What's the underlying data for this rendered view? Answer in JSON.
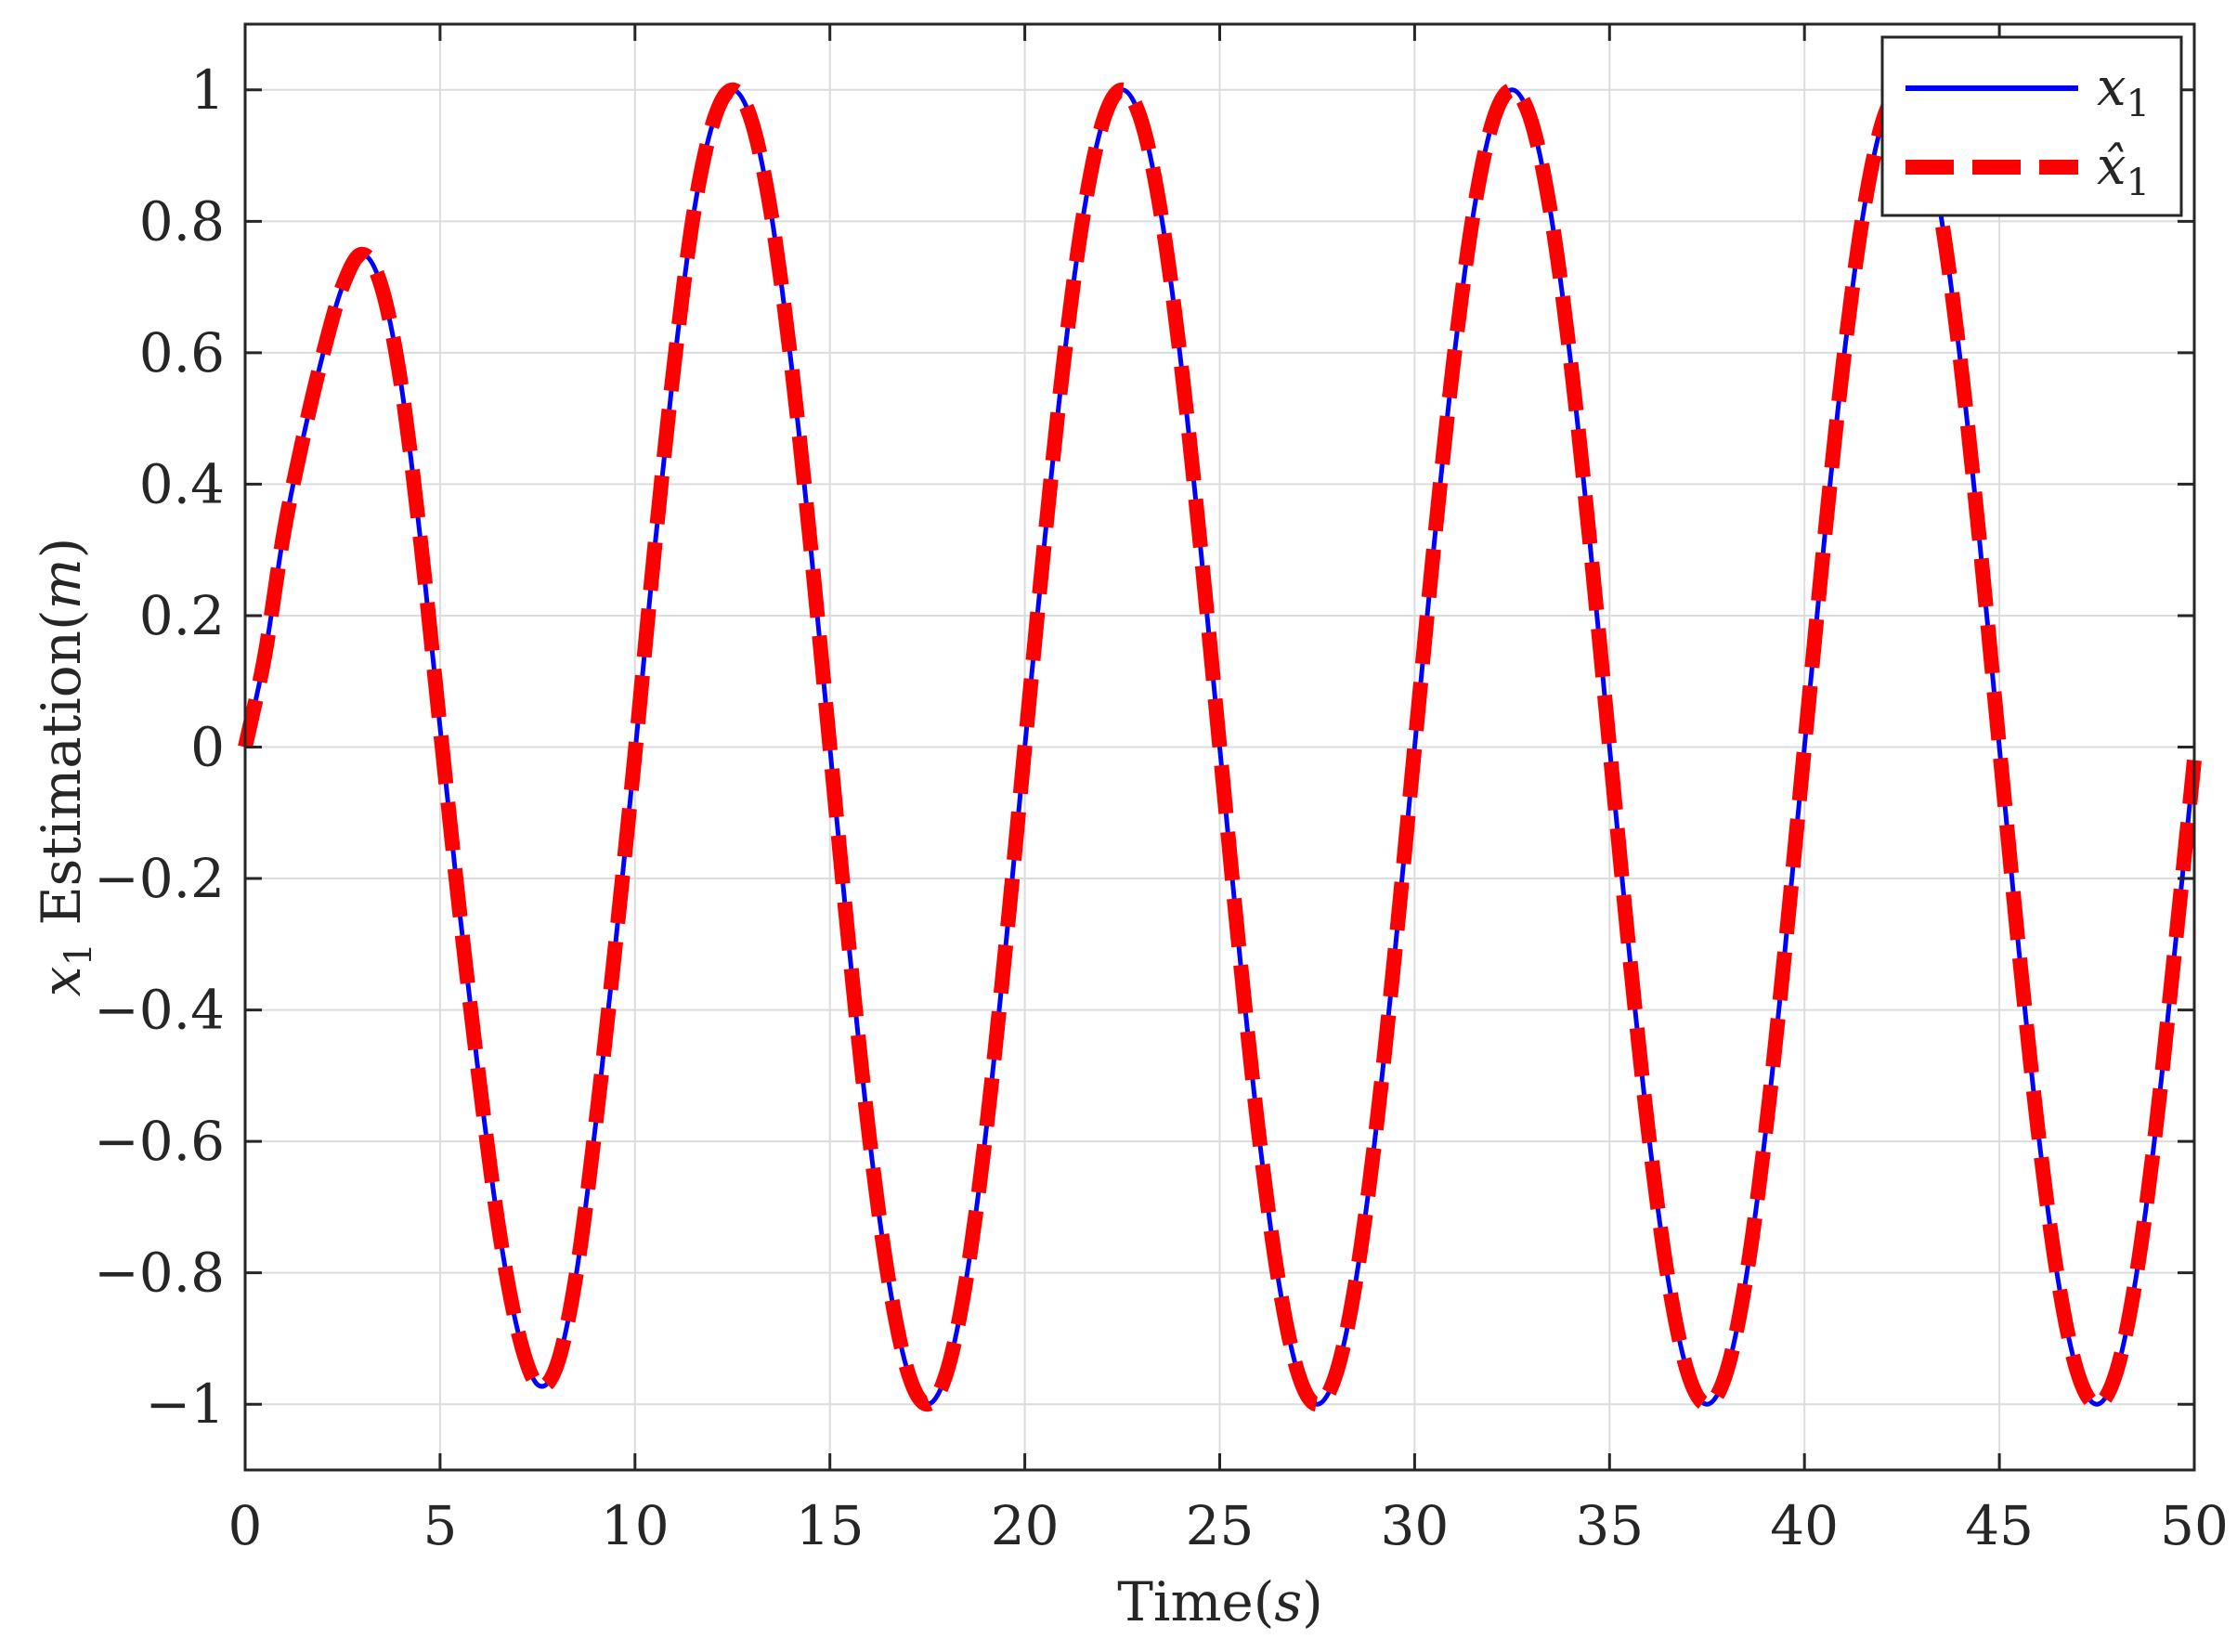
{
  "chart_data": {
    "type": "line",
    "title": "",
    "xlabel": {
      "prefix": "Time(",
      "var": "s",
      "suffix": ")"
    },
    "ylabel": {
      "var": "x",
      "sub": "1",
      "text": " Estimation(",
      "unit": "m",
      "suffix": ")"
    },
    "xlim": [
      0,
      50
    ],
    "ylim": [
      -1.1,
      1.1
    ],
    "xticks": [
      0,
      5,
      10,
      15,
      20,
      25,
      30,
      35,
      40,
      45,
      50
    ],
    "yticks": [
      1,
      0.8,
      0.6,
      0.4,
      0.2,
      0,
      -0.2,
      -0.4,
      -0.6,
      -0.8,
      -1
    ],
    "xtick_labels": [
      "0",
      "5",
      "10",
      "15",
      "20",
      "25",
      "30",
      "35",
      "40",
      "45",
      "50"
    ],
    "ytick_labels": [
      "1",
      "0.8",
      "0.6",
      "0.4",
      "0.2",
      "0",
      "−0.2",
      "−0.4",
      "−0.6",
      "−0.8",
      "−1"
    ],
    "grid": true,
    "legend_position": "top-right",
    "series": [
      {
        "name": "x1",
        "legend_var": "x",
        "legend_sub": "1",
        "color": "#0000ff",
        "style": "solid",
        "x": [
          0,
          0.5,
          1,
          1.5,
          2,
          2.5,
          3,
          3.5,
          4,
          4.5,
          5,
          5.5,
          6,
          6.5,
          7,
          7.5,
          8,
          8.5,
          9,
          9.5,
          10,
          10.5,
          11,
          11.5,
          12,
          12.5,
          13,
          13.5,
          14,
          14.5,
          15,
          15.5,
          16,
          16.5,
          17,
          17.5,
          18,
          18.5,
          19,
          19.5,
          20,
          20.5,
          21,
          21.5,
          22,
          22.5,
          23,
          23.5,
          24,
          24.5,
          25,
          25.5,
          26,
          26.5,
          27,
          27.5,
          28,
          28.5,
          29,
          29.5,
          30,
          30.5,
          31,
          31.5,
          32,
          32.5,
          33,
          33.5,
          34,
          34.5,
          35,
          35.5,
          36,
          36.5,
          37,
          37.5,
          38,
          38.5,
          39,
          39.5,
          40,
          40.5,
          41,
          41.5,
          42,
          42.5,
          43,
          43.5,
          44,
          44.5,
          45,
          45.5,
          46,
          46.5,
          47,
          47.5,
          48,
          48.5,
          49,
          49.5,
          50
        ],
        "y": [
          0,
          0.138,
          0.329,
          0.474,
          0.599,
          0.701,
          0.75,
          0.7,
          0.552,
          0.314,
          0.03,
          -0.25,
          -0.505,
          -0.73,
          -0.89,
          -0.97,
          -0.94,
          -0.8,
          -0.57,
          -0.3,
          -0.01,
          0.3,
          0.58,
          0.81,
          0.95,
          1.0,
          0.951,
          0.809,
          0.588,
          0.309,
          0,
          -0.309,
          -0.588,
          -0.809,
          -0.951,
          -1.0,
          -0.951,
          -0.809,
          -0.588,
          -0.309,
          0,
          0.309,
          0.588,
          0.809,
          0.951,
          1.0,
          0.951,
          0.809,
          0.588,
          0.309,
          0,
          -0.309,
          -0.588,
          -0.809,
          -0.951,
          -1.0,
          -0.951,
          -0.809,
          -0.588,
          -0.309,
          0,
          0.309,
          0.588,
          0.809,
          0.951,
          1.0,
          0.951,
          0.809,
          0.588,
          0.309,
          0,
          -0.309,
          -0.588,
          -0.809,
          -0.951,
          -1.0,
          -0.951,
          -0.809,
          -0.588,
          -0.309,
          0,
          0.309,
          0.588,
          0.809,
          0.951,
          1.0,
          0.951,
          0.809,
          0.588,
          0.309,
          0,
          -0.309,
          -0.588,
          -0.809,
          -0.951,
          -1.0,
          -0.951,
          -0.809,
          -0.588,
          -0.309,
          -0.02
        ]
      },
      {
        "name": "x1_hat",
        "legend_var": "x̂",
        "legend_sub": "1",
        "color": "#ff0000",
        "style": "dashed",
        "x": [
          0,
          0.5,
          1,
          1.5,
          2,
          2.5,
          3,
          3.5,
          4,
          4.5,
          5,
          5.5,
          6,
          6.5,
          7,
          7.5,
          8,
          8.5,
          9,
          9.5,
          10,
          10.5,
          11,
          11.5,
          12,
          12.5,
          13,
          13.5,
          14,
          14.5,
          15,
          15.5,
          16,
          16.5,
          17,
          17.5,
          18,
          18.5,
          19,
          19.5,
          20,
          20.5,
          21,
          21.5,
          22,
          22.5,
          23,
          23.5,
          24,
          24.5,
          25,
          25.5,
          26,
          26.5,
          27,
          27.5,
          28,
          28.5,
          29,
          29.5,
          30,
          30.5,
          31,
          31.5,
          32,
          32.5,
          33,
          33.5,
          34,
          34.5,
          35,
          35.5,
          36,
          36.5,
          37,
          37.5,
          38,
          38.5,
          39,
          39.5,
          40,
          40.5,
          41,
          41.5,
          42,
          42.5,
          43,
          43.5,
          44,
          44.5,
          45,
          45.5,
          46,
          46.5,
          47,
          47.5,
          48,
          48.5,
          49,
          49.5,
          50
        ],
        "y": [
          0,
          0.138,
          0.329,
          0.474,
          0.599,
          0.701,
          0.75,
          0.7,
          0.552,
          0.314,
          0.03,
          -0.25,
          -0.505,
          -0.73,
          -0.89,
          -0.97,
          -0.94,
          -0.8,
          -0.57,
          -0.3,
          -0.01,
          0.3,
          0.58,
          0.81,
          0.95,
          1.0,
          0.951,
          0.809,
          0.588,
          0.309,
          0,
          -0.309,
          -0.588,
          -0.809,
          -0.951,
          -1.0,
          -0.951,
          -0.809,
          -0.588,
          -0.309,
          0,
          0.309,
          0.588,
          0.809,
          0.951,
          1.0,
          0.951,
          0.809,
          0.588,
          0.309,
          0,
          -0.309,
          -0.588,
          -0.809,
          -0.951,
          -1.0,
          -0.951,
          -0.809,
          -0.588,
          -0.309,
          0,
          0.309,
          0.588,
          0.809,
          0.951,
          1.0,
          0.951,
          0.809,
          0.588,
          0.309,
          0,
          -0.309,
          -0.588,
          -0.809,
          -0.951,
          -1.0,
          -0.951,
          -0.809,
          -0.588,
          -0.309,
          0,
          0.309,
          0.588,
          0.809,
          0.951,
          1.0,
          0.951,
          0.809,
          0.588,
          0.309,
          0,
          -0.309,
          -0.588,
          -0.809,
          -0.951,
          -1.0,
          -0.951,
          -0.809,
          -0.588,
          -0.309,
          -0.02
        ]
      }
    ]
  }
}
